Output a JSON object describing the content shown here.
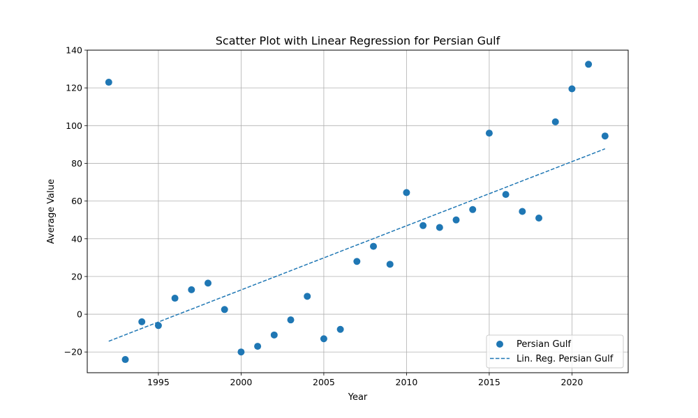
{
  "chart_data": {
    "type": "scatter",
    "title": "Scatter Plot with Linear Regression for Persian Gulf",
    "xlabel": "Year",
    "ylabel": "Average Value",
    "xlim": [
      1990.7,
      2023.4
    ],
    "ylim": [
      -31,
      140
    ],
    "xticks": [
      1995,
      2000,
      2005,
      2010,
      2015,
      2020
    ],
    "yticks": [
      -20,
      0,
      20,
      40,
      60,
      80,
      100,
      120,
      140
    ],
    "grid": true,
    "legend_position": "lower right",
    "series": [
      {
        "name": "Persian Gulf",
        "kind": "scatter",
        "color": "#1f77b4",
        "x": [
          1992,
          1993,
          1994,
          1995,
          1996,
          1997,
          1998,
          1999,
          2000,
          2001,
          2002,
          2003,
          2004,
          2005,
          2006,
          2007,
          2008,
          2009,
          2010,
          2011,
          2012,
          2013,
          2014,
          2015,
          2016,
          2017,
          2018,
          2019,
          2020,
          2021,
          2022
        ],
        "y": [
          123,
          -24,
          -4,
          -6,
          8.5,
          13,
          16.5,
          2.5,
          -20,
          -17,
          -11,
          -3,
          9.5,
          -13,
          -8,
          28,
          36,
          26.5,
          64.5,
          47,
          46,
          50,
          55.5,
          96,
          63.5,
          54.5,
          51,
          102,
          119.5,
          132.5,
          94.5
        ]
      },
      {
        "name": "Lin. Reg. Persian Gulf",
        "kind": "line",
        "style": "dashed",
        "color": "#1f77b4",
        "x": [
          1992,
          2022
        ],
        "y": [
          -14.3,
          87.7
        ]
      }
    ]
  }
}
